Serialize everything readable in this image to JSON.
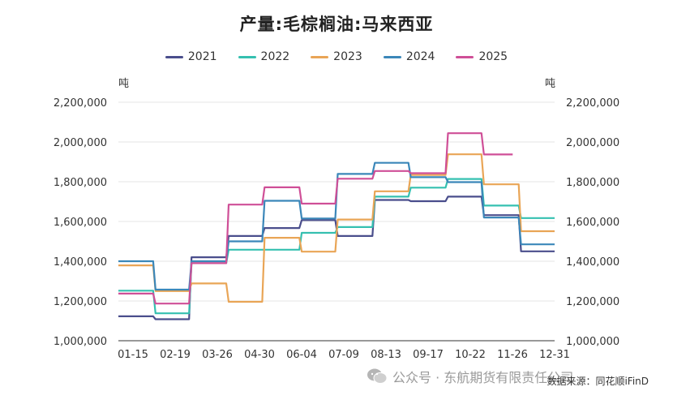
{
  "chart_data": {
    "type": "line",
    "title": "产量:毛棕榈油:马来西亚",
    "unit_left": "吨",
    "unit_right": "吨",
    "x_labels": [
      "01-15",
      "02-19",
      "03-26",
      "04-30",
      "06-04",
      "07-09",
      "08-13",
      "09-17",
      "10-22",
      "11-26",
      "12-31"
    ],
    "ylim": [
      1000000,
      2200000
    ],
    "y_ticks": [
      "1,000,000",
      "1,200,000",
      "1,400,000",
      "1,600,000",
      "1,800,000",
      "2,000,000",
      "2,200,000"
    ],
    "y_tick_values": [
      1000000,
      1200000,
      1400000,
      1600000,
      1800000,
      2000000,
      2200000
    ],
    "legend_position": "top-center",
    "series": [
      {
        "name": "2021",
        "color": "#4a4e8c",
        "points": [
          [
            1,
            1123000
          ],
          [
            30,
            1123000
          ],
          [
            32,
            1108000
          ],
          [
            60,
            1108000
          ],
          [
            62,
            1420000
          ],
          [
            91,
            1420000
          ],
          [
            93,
            1527000
          ],
          [
            121,
            1527000
          ],
          [
            123,
            1567000
          ],
          [
            152,
            1567000
          ],
          [
            154,
            1607000
          ],
          [
            182,
            1607000
          ],
          [
            184,
            1527000
          ],
          [
            213,
            1527000
          ],
          [
            215,
            1708000
          ],
          [
            243,
            1708000
          ],
          [
            245,
            1702000
          ],
          [
            274,
            1702000
          ],
          [
            276,
            1725000
          ],
          [
            304,
            1725000
          ],
          [
            306,
            1632000
          ],
          [
            335,
            1632000
          ],
          [
            337,
            1450000
          ],
          [
            365,
            1450000
          ]
        ]
      },
      {
        "name": "2022",
        "color": "#35c0b0",
        "points": [
          [
            1,
            1252000
          ],
          [
            30,
            1252000
          ],
          [
            32,
            1138000
          ],
          [
            60,
            1138000
          ],
          [
            62,
            1390000
          ],
          [
            91,
            1390000
          ],
          [
            93,
            1458000
          ],
          [
            121,
            1458000
          ],
          [
            123,
            1458000
          ],
          [
            152,
            1458000
          ],
          [
            154,
            1543000
          ],
          [
            182,
            1543000
          ],
          [
            184,
            1572000
          ],
          [
            213,
            1572000
          ],
          [
            215,
            1725000
          ],
          [
            243,
            1725000
          ],
          [
            245,
            1770000
          ],
          [
            274,
            1770000
          ],
          [
            276,
            1814000
          ],
          [
            304,
            1814000
          ],
          [
            306,
            1680000
          ],
          [
            335,
            1680000
          ],
          [
            337,
            1617000
          ],
          [
            365,
            1617000
          ]
        ]
      },
      {
        "name": "2023",
        "color": "#e9a556",
        "points": [
          [
            1,
            1379000
          ],
          [
            30,
            1379000
          ],
          [
            32,
            1250000
          ],
          [
            60,
            1250000
          ],
          [
            62,
            1288000
          ],
          [
            91,
            1288000
          ],
          [
            93,
            1196000
          ],
          [
            121,
            1196000
          ],
          [
            123,
            1518000
          ],
          [
            152,
            1518000
          ],
          [
            154,
            1448000
          ],
          [
            182,
            1448000
          ],
          [
            184,
            1610000
          ],
          [
            213,
            1610000
          ],
          [
            215,
            1752000
          ],
          [
            243,
            1752000
          ],
          [
            245,
            1834000
          ],
          [
            274,
            1834000
          ],
          [
            276,
            1938000
          ],
          [
            304,
            1938000
          ],
          [
            306,
            1787000
          ],
          [
            335,
            1787000
          ],
          [
            337,
            1551000
          ],
          [
            365,
            1551000
          ]
        ]
      },
      {
        "name": "2024",
        "color": "#3b87b9",
        "points": [
          [
            1,
            1400000
          ],
          [
            30,
            1400000
          ],
          [
            32,
            1257000
          ],
          [
            60,
            1257000
          ],
          [
            62,
            1400000
          ],
          [
            91,
            1400000
          ],
          [
            93,
            1500000
          ],
          [
            121,
            1500000
          ],
          [
            123,
            1704000
          ],
          [
            152,
            1704000
          ],
          [
            154,
            1615000
          ],
          [
            182,
            1615000
          ],
          [
            184,
            1839000
          ],
          [
            213,
            1839000
          ],
          [
            215,
            1895000
          ],
          [
            243,
            1895000
          ],
          [
            245,
            1823000
          ],
          [
            274,
            1823000
          ],
          [
            276,
            1798000
          ],
          [
            304,
            1798000
          ],
          [
            306,
            1620000
          ],
          [
            335,
            1620000
          ],
          [
            337,
            1485000
          ],
          [
            365,
            1485000
          ]
        ]
      },
      {
        "name": "2025",
        "color": "#cf4f97",
        "points": [
          [
            1,
            1237000
          ],
          [
            30,
            1237000
          ],
          [
            32,
            1187000
          ],
          [
            60,
            1187000
          ],
          [
            62,
            1390000
          ],
          [
            91,
            1390000
          ],
          [
            93,
            1685000
          ],
          [
            121,
            1685000
          ],
          [
            123,
            1772000
          ],
          [
            152,
            1772000
          ],
          [
            154,
            1690000
          ],
          [
            182,
            1690000
          ],
          [
            184,
            1815000
          ],
          [
            213,
            1815000
          ],
          [
            215,
            1854000
          ],
          [
            243,
            1854000
          ],
          [
            245,
            1843000
          ],
          [
            274,
            1843000
          ],
          [
            276,
            2044000
          ],
          [
            304,
            2044000
          ],
          [
            306,
            1937000
          ],
          [
            330,
            1937000
          ]
        ]
      }
    ]
  },
  "source_text": "数据来源：同花顺iFinD",
  "watermark_text": "公众号 · 东航期货有限责任公司"
}
